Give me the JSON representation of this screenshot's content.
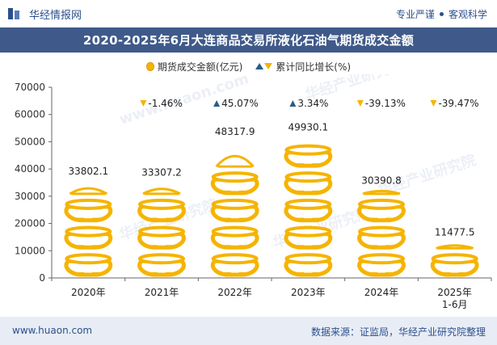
{
  "header": {
    "brand": "华经情报网",
    "tagline_left": "专业严谨",
    "tagline_right": "客观科学"
  },
  "watermarks": [
    "华经产业研究院",
    "www.huaon.com"
  ],
  "footer": {
    "site": "www.huaon.com",
    "source": "数据来源：证监局，华经产业研究院整理"
  },
  "colors": {
    "title_bg": "#3f5a8a",
    "pot": "#f5b400",
    "up": "#2b5d86",
    "down": "#f5b400",
    "footer_bg": "#e8edf5"
  },
  "chart_data": {
    "type": "bar",
    "title": "2020-2025年6月大连商品交易所液化石油气期货成交金额",
    "categories": [
      "2020年",
      "2021年",
      "2022年",
      "2023年",
      "2024年",
      "2025年\n1-6月"
    ],
    "series": [
      {
        "name": "期货成交金额(亿元)",
        "values": [
          33802.1,
          33307.2,
          48317.9,
          49930.1,
          30390.8,
          11477.5
        ],
        "labels": [
          "33802.1",
          "33307.2",
          "48317.9",
          "49930.1",
          "30390.8",
          "11477.5"
        ]
      },
      {
        "name": "累计同比增长(%)",
        "values": [
          null,
          -1.46,
          45.07,
          3.34,
          -39.13,
          -39.47
        ],
        "labels": [
          "",
          "-1.46%",
          "45.07%",
          "3.34%",
          "-39.13%",
          "-39.47%"
        ]
      }
    ],
    "ylim": [
      0,
      70000
    ],
    "yticks": [
      0,
      10000,
      20000,
      30000,
      40000,
      50000,
      60000,
      70000
    ],
    "pictorial_unit": 10000,
    "legend_position": "top-center"
  }
}
